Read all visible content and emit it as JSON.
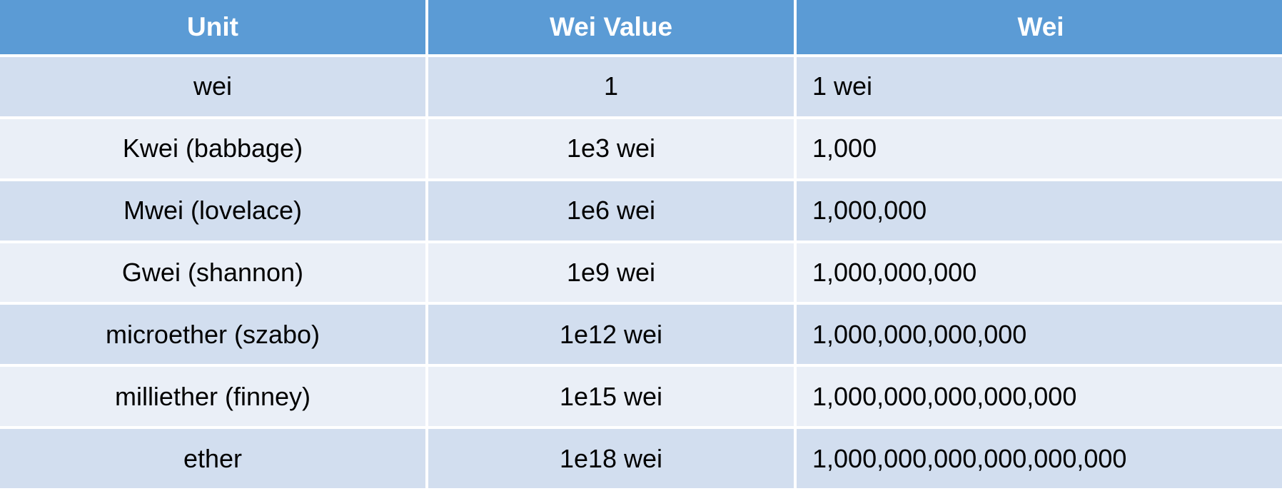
{
  "table": {
    "headers": [
      "Unit",
      "Wei Value",
      "Wei"
    ],
    "rows": [
      [
        "wei",
        "1",
        "1 wei"
      ],
      [
        "Kwei (babbage)",
        "1e3 wei",
        "1,000"
      ],
      [
        "Mwei (lovelace)",
        "1e6 wei",
        "1,000,000"
      ],
      [
        "Gwei (shannon)",
        "1e9 wei",
        "1,000,000,000"
      ],
      [
        "microether (szabo)",
        "1e12 wei",
        "1,000,000,000,000"
      ],
      [
        "milliether (finney)",
        "1e15 wei",
        "1,000,000,000,000,000"
      ],
      [
        "ether",
        "1e18 wei",
        "1,000,000,000,000,000,000"
      ]
    ]
  },
  "colors": {
    "header_bg": "#5b9bd5",
    "row_odd_bg": "#d2deef",
    "row_even_bg": "#eaeff7"
  }
}
